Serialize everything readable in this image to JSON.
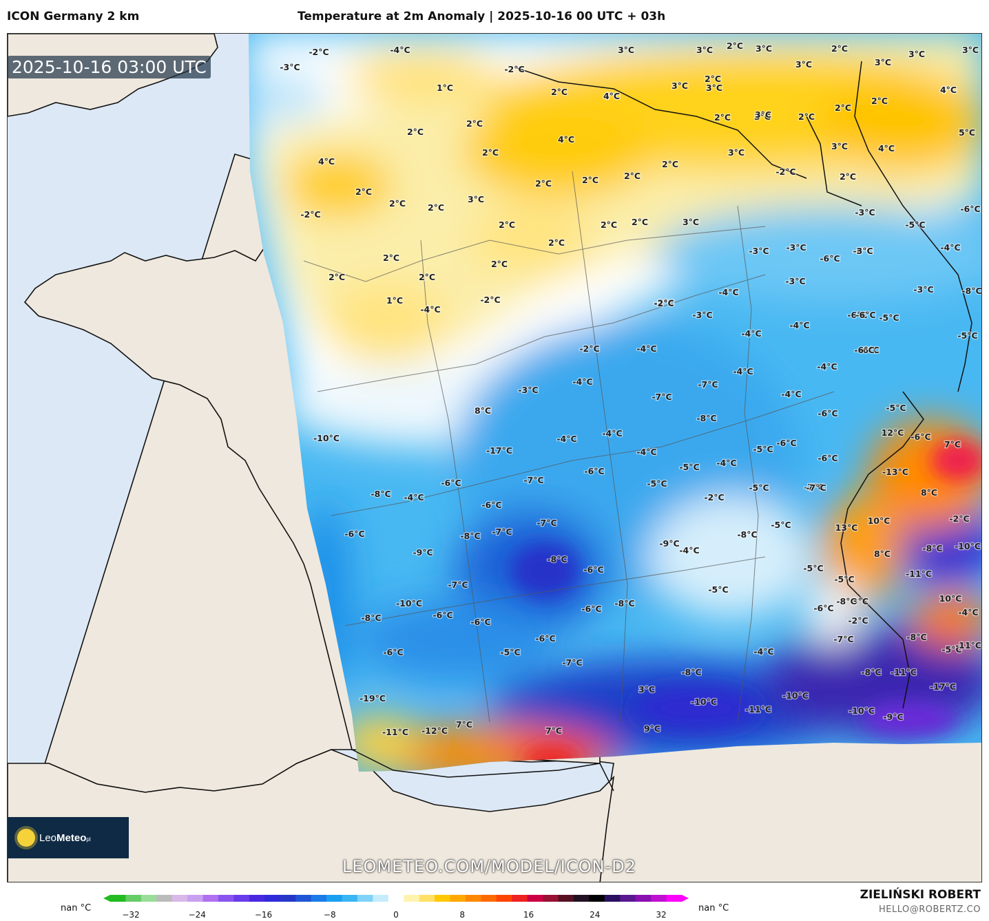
{
  "header": {
    "model": "ICON Germany 2 km",
    "title": "Temperature at 2m Anomaly | 2025-10-16 00 UTC + 03h"
  },
  "map": {
    "timestamp": "2025-10-16 03:00 UTC",
    "website": "LEOMETEO.COM/MODEL/ICON-D2",
    "logo": {
      "brand_light": "Leo",
      "brand_bold": "Meteo",
      "suffix": "pl"
    },
    "colors": {
      "sea": "#dce8f5",
      "land": "#efe8de"
    },
    "labels": [
      {
        "t": "3°C"
      },
      {
        "t": "3°C"
      },
      {
        "t": "2°C"
      },
      {
        "t": "3°C"
      },
      {
        "t": "2°C"
      },
      {
        "t": "3°C"
      },
      {
        "t": "3°C"
      },
      {
        "t": "3°C"
      },
      {
        "t": "3°C"
      },
      {
        "t": "3°C"
      },
      {
        "t": "3°C"
      },
      {
        "t": "4°C"
      },
      {
        "t": "2°C"
      },
      {
        "t": "2°C"
      },
      {
        "t": "4°C"
      },
      {
        "t": "2°C"
      },
      {
        "t": "2°C"
      },
      {
        "t": "3°C"
      },
      {
        "t": "2°C"
      },
      {
        "t": "4°C"
      },
      {
        "t": "5°C"
      },
      {
        "t": "1°C"
      },
      {
        "t": "-2°C"
      },
      {
        "t": "-4°C"
      },
      {
        "t": "-3°C"
      },
      {
        "t": "-2°C"
      },
      {
        "t": "2°C"
      },
      {
        "t": "2°C"
      },
      {
        "t": "4°C"
      },
      {
        "t": "2°C"
      },
      {
        "t": "3°C"
      },
      {
        "t": "3°C"
      },
      {
        "t": "4°C"
      },
      {
        "t": "4°C"
      },
      {
        "t": "4°C"
      },
      {
        "t": "2°C"
      },
      {
        "t": "2°C"
      },
      {
        "t": "2°C"
      },
      {
        "t": "2°C"
      },
      {
        "t": "3°C"
      },
      {
        "t": "-2°C"
      },
      {
        "t": "2°C"
      },
      {
        "t": "2°C"
      },
      {
        "t": "3°C"
      },
      {
        "t": "2°C"
      },
      {
        "t": "2°C"
      },
      {
        "t": "2°C"
      },
      {
        "t": "3°C"
      },
      {
        "t": "-6°C"
      },
      {
        "t": "2°C"
      },
      {
        "t": "2°C"
      },
      {
        "t": "2°C"
      },
      {
        "t": "-3°C"
      },
      {
        "t": "-5°C"
      },
      {
        "t": "-2°C"
      },
      {
        "t": "-3°C"
      },
      {
        "t": "-6°C"
      },
      {
        "t": "-3°C"
      },
      {
        "t": "-6°C"
      },
      {
        "t": "-4°C"
      },
      {
        "t": "2°C"
      },
      {
        "t": "2°C"
      },
      {
        "t": "-3°C"
      },
      {
        "t": "-3°C"
      },
      {
        "t": "-8°C"
      },
      {
        "t": "2°C"
      },
      {
        "t": "2°C"
      },
      {
        "t": "-2°C"
      },
      {
        "t": "-4°C"
      },
      {
        "t": "-3°C"
      },
      {
        "t": "-6°C"
      },
      {
        "t": "-5°C"
      },
      {
        "t": "2°C"
      },
      {
        "t": "1°C"
      },
      {
        "t": "-4°C"
      },
      {
        "t": "-4°C"
      },
      {
        "t": "-5°C"
      },
      {
        "t": "-2°C"
      },
      {
        "t": "-4°C"
      },
      {
        "t": "-6°C"
      },
      {
        "t": "-4°C"
      },
      {
        "t": "-4°C"
      },
      {
        "t": "-2°C"
      },
      {
        "t": "-2°C"
      },
      {
        "t": "-4°C"
      },
      {
        "t": "-7°C"
      },
      {
        "t": "-7°C"
      },
      {
        "t": "-4°C"
      },
      {
        "t": "-5°C"
      },
      {
        "t": "-6°C"
      },
      {
        "t": "-3°C"
      },
      {
        "t": "-4°C"
      },
      {
        "t": "-8°C"
      },
      {
        "t": "-6°C"
      },
      {
        "t": "-7°C"
      },
      {
        "t": "-3°C"
      },
      {
        "t": "-4°C"
      },
      {
        "t": "-5°C"
      },
      {
        "t": "-6°C"
      },
      {
        "t": "-5°C"
      },
      {
        "t": "-6°C"
      },
      {
        "t": "-13°C"
      },
      {
        "t": "-6°C"
      },
      {
        "t": "-4°C"
      },
      {
        "t": "-4°C"
      },
      {
        "t": "-4°C"
      },
      {
        "t": "-5°C"
      },
      {
        "t": "-5°C"
      },
      {
        "t": "-5°C"
      },
      {
        "t": "-7°C"
      },
      {
        "t": "-10°C"
      },
      {
        "t": "-6°C"
      },
      {
        "t": "-6°C"
      },
      {
        "t": "-4°C"
      },
      {
        "t": "-2°C"
      },
      {
        "t": "-2°C"
      },
      {
        "t": "-17°C"
      },
      {
        "t": "-8°C"
      },
      {
        "t": "-7°C"
      },
      {
        "t": "-8°C"
      },
      {
        "t": "-5°C"
      },
      {
        "t": "-8°C"
      },
      {
        "t": "-10°C"
      },
      {
        "t": "-8°C"
      },
      {
        "t": "-7°C"
      },
      {
        "t": "-9°C"
      },
      {
        "t": "-4°C"
      },
      {
        "t": "3°C"
      },
      {
        "t": "-11°C"
      },
      {
        "t": "-6°C"
      },
      {
        "t": "-6°C"
      },
      {
        "t": "-6°C"
      },
      {
        "t": "-5°C"
      },
      {
        "t": "-8°C"
      },
      {
        "t": "-2°C"
      },
      {
        "t": "-4°C"
      },
      {
        "t": "-9°C"
      },
      {
        "t": "-7°C"
      },
      {
        "t": "-8°C"
      },
      {
        "t": "-8°C"
      },
      {
        "t": "-5°C"
      },
      {
        "t": "-5°C"
      },
      {
        "t": "-10°C"
      },
      {
        "t": "-7°C"
      },
      {
        "t": "-6°C"
      },
      {
        "t": "-6°C"
      },
      {
        "t": "-6°C"
      },
      {
        "t": "-8°C"
      },
      {
        "t": "-11°C"
      },
      {
        "t": "-8°C"
      },
      {
        "t": "-6°C"
      },
      {
        "t": "-5°C"
      },
      {
        "t": "-4°C"
      },
      {
        "t": "-7°C"
      },
      {
        "t": "-8°C"
      },
      {
        "t": "-6°C"
      },
      {
        "t": "-6°C"
      },
      {
        "t": "-7°C"
      },
      {
        "t": "-8°C"
      },
      {
        "t": "-11°C"
      },
      {
        "t": "-17°C"
      },
      {
        "t": "-19°C"
      },
      {
        "t": "3°C"
      },
      {
        "t": "-10°C"
      },
      {
        "t": "-11°C"
      },
      {
        "t": "-10°C"
      },
      {
        "t": "-10°C"
      },
      {
        "t": "-9°C"
      },
      {
        "t": "-11°C"
      },
      {
        "t": "-12°C"
      },
      {
        "t": "7°C"
      },
      {
        "t": "7°C"
      },
      {
        "t": "9°C"
      },
      {
        "t": "12°C"
      },
      {
        "t": "-6°C"
      },
      {
        "t": "7°C"
      },
      {
        "t": "8°C"
      },
      {
        "t": "13°C"
      },
      {
        "t": "10°C"
      },
      {
        "t": "8°C"
      },
      {
        "t": "10°C"
      },
      {
        "t": "8°C"
      },
      {
        "t": "8°C"
      }
    ]
  },
  "colorbar": {
    "left_label": "nan °C",
    "right_label": "nan °C",
    "ticks": [
      "−32",
      "−24",
      "−16",
      "−8",
      "0",
      "8",
      "16",
      "24",
      "32"
    ],
    "colors": [
      "#22bb22",
      "#66cc66",
      "#99dd99",
      "#bbbbbb",
      "#d8b8e8",
      "#c8a0f0",
      "#b070f0",
      "#8a55ee",
      "#6a3bea",
      "#4a28e0",
      "#2f2bd8",
      "#2536c8",
      "#1f55d6",
      "#1b7be8",
      "#1aa0f0",
      "#3ab6f4",
      "#7fd2f8",
      "#c6ecfb",
      "#ffffff",
      "#fff3b0",
      "#ffe066",
      "#ffc800",
      "#ffa800",
      "#ff8800",
      "#ff6a00",
      "#ff4400",
      "#ee2222",
      "#cc0044",
      "#991133",
      "#551122",
      "#221122",
      "#000000",
      "#2a1060",
      "#5a1890",
      "#8a10b0",
      "#c010d0",
      "#ff00ff"
    ]
  },
  "footer": {
    "author": "ZIELIŃSKI ROBERT",
    "email": "HELLO@ROBERTZ.CO"
  }
}
